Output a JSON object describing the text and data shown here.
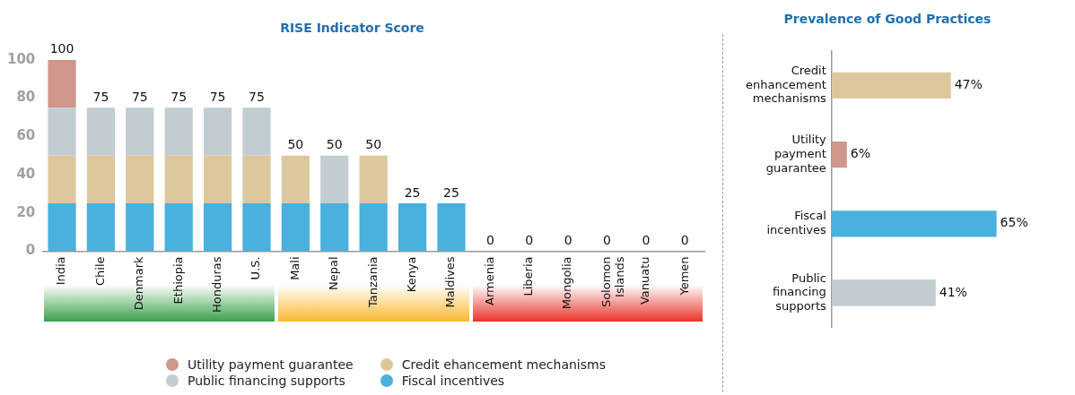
{
  "chart_data": [
    {
      "type": "bar",
      "title": "RISE Indicator Score",
      "stacked": true,
      "legend": "bottom",
      "grid": false,
      "categories": [
        "India",
        "Chile",
        "Denmark",
        "Ethiopia",
        "Honduras",
        "U.S.",
        "Mali",
        "Nepal",
        "Tanzania",
        "Kenya",
        "Maldives",
        "Armenia",
        "Liberia",
        "Mongolia",
        "Solomon Islands",
        "Vanuatu",
        "Yemen"
      ],
      "ylim": [
        0,
        100
      ],
      "yticks": [
        0,
        20,
        40,
        60,
        80,
        100
      ],
      "series": [
        {
          "name": "Fiscal incentives",
          "color": "#4ab0de",
          "values": [
            25,
            25,
            25,
            25,
            25,
            25,
            25,
            25,
            25,
            25,
            25,
            0,
            0,
            0,
            0,
            0,
            0
          ]
        },
        {
          "name": "Credit ehancement mechanisms",
          "color": "#ddc89e",
          "values": [
            25,
            25,
            25,
            25,
            25,
            25,
            25,
            0,
            25,
            0,
            0,
            0,
            0,
            0,
            0,
            0,
            0
          ]
        },
        {
          "name": "Public financing supports",
          "color": "#c2cdd2",
          "values": [
            25,
            25,
            25,
            25,
            25,
            25,
            0,
            25,
            0,
            0,
            0,
            0,
            0,
            0,
            0,
            0,
            0
          ]
        },
        {
          "name": "Utility payment guarantee",
          "color": "#cf968c",
          "values": [
            25,
            0,
            0,
            0,
            0,
            0,
            0,
            0,
            0,
            0,
            0,
            0,
            0,
            0,
            0,
            0,
            0
          ]
        }
      ],
      "totals": [
        "100",
        "75",
        "75",
        "75",
        "75",
        "75",
        "50",
        "50",
        "50",
        "25",
        "25",
        "0",
        "0",
        "0",
        "0",
        "0",
        "0"
      ]
    },
    {
      "type": "bar",
      "title": "Prevalence of Good Practices",
      "orientation": "horizontal",
      "grid": false,
      "categories": [
        "Credit enhancement mechanisms",
        "Utility payment guarantee",
        "Fiscal incentives",
        "Public financing supports"
      ],
      "values": [
        47,
        6,
        65,
        41
      ],
      "colors": [
        "#ddc89e",
        "#cf968c",
        "#4ab0de",
        "#c2cdd2"
      ],
      "value_labels": [
        "47%",
        "6%",
        "65%",
        "41%"
      ]
    }
  ]
}
